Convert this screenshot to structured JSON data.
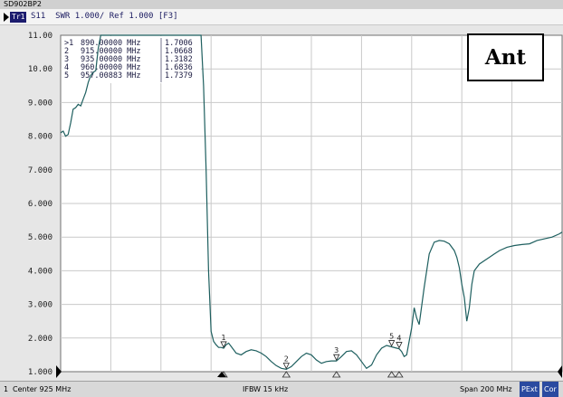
{
  "window": {
    "title": "SD902BP2"
  },
  "trace_header": {
    "badge": "Tr1",
    "text": "S11  SWR 1.000/ Ref 1.000 [F3]"
  },
  "annotation": {
    "label": "Ant"
  },
  "markers": [
    {
      "id": ">1",
      "freq": "890.00000 MHz",
      "value": "1.7006"
    },
    {
      "id": "2",
      "freq": "915.00000 MHz",
      "value": "1.0668"
    },
    {
      "id": "3",
      "freq": "935.00000 MHz",
      "value": "1.3182"
    },
    {
      "id": "4",
      "freq": "960.00000 MHz",
      "value": "1.6836"
    },
    {
      "id": "5",
      "freq": "957.00883 MHz",
      "value": "1.7379"
    }
  ],
  "status": {
    "channel": "1",
    "center": "Center 925 MHz",
    "ifbw": "IFBW 15 kHz",
    "span": "Span 200 MHz",
    "badge_pext": "PExt",
    "badge_cor": "Cor"
  },
  "colors": {
    "trace": "#1e5f5f",
    "grid": "#c9c9c9",
    "plot_bg": "#ffffff"
  },
  "chart_data": {
    "type": "line",
    "title": "",
    "xlabel": "",
    "ylabel": "SWR",
    "x_range_mhz": [
      825,
      1025
    ],
    "ylim": [
      1,
      11
    ],
    "y_ticks": [
      "11.00",
      "10.00",
      "9.000",
      "8.000",
      "7.000",
      "6.000",
      "5.000",
      "4.000",
      "3.000",
      "2.000",
      "1.000"
    ],
    "grid": true,
    "series": [
      {
        "x": [
          825,
          826,
          827,
          828,
          829,
          830,
          831,
          832,
          833,
          834,
          835,
          836,
          837,
          838,
          839,
          840,
          841,
          842,
          843,
          844,
          845,
          846,
          847,
          848,
          849,
          850,
          851,
          852,
          853,
          854,
          855,
          856,
          857,
          858,
          859,
          860,
          861,
          862,
          863,
          864,
          865,
          866,
          867,
          868,
          869,
          870,
          871,
          872,
          873,
          874,
          875,
          876,
          877,
          878,
          879,
          880,
          881,
          882,
          883,
          884,
          885,
          886,
          887,
          888,
          889,
          890,
          891,
          892,
          893,
          895,
          897,
          899,
          901,
          903,
          905,
          907,
          909,
          911,
          913,
          915,
          917,
          919,
          921,
          923,
          925,
          927,
          929,
          931,
          933,
          935,
          937,
          939,
          941,
          943,
          945,
          947,
          949,
          951,
          953,
          955,
          957,
          959,
          960,
          961,
          962,
          963,
          964,
          965,
          966,
          967,
          968,
          970,
          972,
          974,
          976,
          978,
          980,
          982,
          983,
          984,
          985,
          986,
          987,
          988,
          989,
          990,
          992,
          994,
          996,
          998,
          1000,
          1003,
          1006,
          1009,
          1012,
          1015,
          1018,
          1021,
          1024,
          1025
        ],
        "y": [
          8.1,
          8.15,
          8.0,
          8.05,
          8.4,
          8.8,
          8.85,
          8.95,
          8.9,
          9.1,
          9.3,
          9.6,
          9.8,
          9.9,
          9.95,
          10.6,
          11.0,
          11.0,
          11.0,
          11.0,
          11.0,
          11.0,
          11.0,
          11.0,
          11.0,
          11.0,
          11.0,
          11.0,
          11.0,
          11.0,
          11.0,
          11.0,
          11.0,
          11.0,
          11.0,
          11.0,
          11.0,
          11.0,
          11.0,
          11.0,
          11.0,
          11.0,
          11.0,
          11.0,
          11.0,
          11.0,
          11.0,
          11.0,
          11.0,
          11.0,
          11.0,
          11.0,
          11.0,
          11.0,
          11.0,
          11.0,
          11.0,
          9.5,
          7.0,
          4.0,
          2.2,
          1.9,
          1.8,
          1.72,
          1.72,
          1.7,
          1.8,
          1.85,
          1.75,
          1.55,
          1.5,
          1.6,
          1.65,
          1.62,
          1.55,
          1.45,
          1.3,
          1.18,
          1.1,
          1.07,
          1.15,
          1.3,
          1.45,
          1.55,
          1.5,
          1.35,
          1.25,
          1.3,
          1.32,
          1.32,
          1.45,
          1.6,
          1.62,
          1.5,
          1.3,
          1.1,
          1.2,
          1.5,
          1.7,
          1.78,
          1.74,
          1.7,
          1.68,
          1.6,
          1.45,
          1.5,
          1.9,
          2.3,
          2.9,
          2.6,
          2.4,
          3.5,
          4.5,
          4.85,
          4.9,
          4.88,
          4.8,
          4.6,
          4.4,
          4.1,
          3.6,
          3.2,
          2.5,
          2.9,
          3.6,
          4.0,
          4.2,
          4.3,
          4.4,
          4.5,
          4.6,
          4.7,
          4.75,
          4.78,
          4.8,
          4.9,
          4.95,
          5.0,
          5.1,
          5.15
        ]
      }
    ],
    "markers": [
      {
        "label": "1",
        "x": 890,
        "y": 1.7006
      },
      {
        "label": "2",
        "x": 915,
        "y": 1.0668
      },
      {
        "label": "3",
        "x": 935,
        "y": 1.3182
      },
      {
        "label": "4",
        "x": 960,
        "y": 1.6836
      },
      {
        "label": "5",
        "x": 957.00883,
        "y": 1.7379
      }
    ]
  }
}
